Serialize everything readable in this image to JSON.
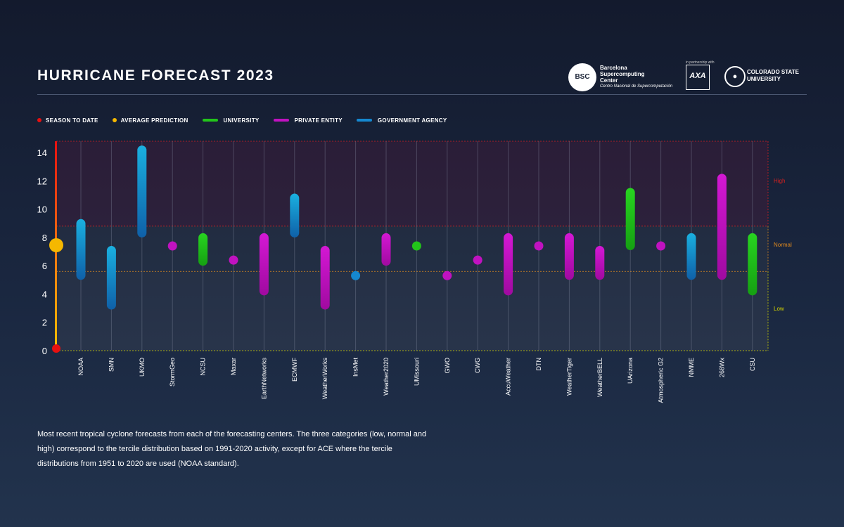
{
  "header": {
    "title": "HURRICANE FORECAST 2023"
  },
  "logos": {
    "bsc_mark": "BSC",
    "bsc_name_lines": [
      "Barcelona",
      "Supercomputing",
      "Center"
    ],
    "bsc_subtitle": "Centro Nacional de Supercomputación",
    "axa_tag": "in partnership with",
    "axa_mark": "AXA",
    "csu_name_lines": [
      "COLORADO STATE",
      "UNIVERSITY"
    ]
  },
  "legend": {
    "items": [
      {
        "label": "SEASON TO DATE",
        "kind": "dot",
        "color": "#e81010"
      },
      {
        "label": "AVERAGE PREDICTION",
        "kind": "dot",
        "color": "#f5b800"
      },
      {
        "label": "UNIVERSITY",
        "kind": "line",
        "color": "#22c41a"
      },
      {
        "label": "PRIVATE ENTITY",
        "kind": "line",
        "color": "#c012c0"
      },
      {
        "label": "GOVERNMENT AGENCY",
        "kind": "line",
        "color": "#1588d0"
      }
    ]
  },
  "chart_data": {
    "type": "range",
    "ylim": [
      0,
      14.8
    ],
    "yticks": [
      0,
      2,
      4,
      6,
      8,
      10,
      12,
      14
    ],
    "grid": "vertical",
    "terciles": {
      "low_upper": 5.6,
      "normal_upper": 8.8,
      "labels": {
        "high": "High",
        "normal": "Normal",
        "low": "Low"
      },
      "colors": {
        "high": "#d42020",
        "normal": "#e08a1e",
        "low": "#d4d400"
      }
    },
    "season_to_date": 0.1,
    "average_prediction": 7.4,
    "colors": {
      "university": "#22c41a",
      "private": "#c012c0",
      "government": "#1588d0",
      "season_to_date": "#e81010",
      "average_prediction": "#f5b800"
    },
    "categories": [
      "NOAA",
      "SMN",
      "UKMO",
      "StormGeo",
      "NCSU",
      "Maxar",
      "EarthNetworks",
      "ECMWF",
      "WeatherWorks",
      "InsMet",
      "Weather2020",
      "UMissouri",
      "GWO",
      "CWG",
      "AccuWeather",
      "DTN",
      "WeatherTiger",
      "WeatherBELL",
      "UArizona",
      "Atmospheric G2",
      "NMME",
      "268Wx",
      "CSU"
    ],
    "series": [
      {
        "name": "NOAA",
        "type": "government",
        "low": 5.3,
        "high": 9.0
      },
      {
        "name": "SMN",
        "type": "government",
        "low": 3.2,
        "high": 7.1
      },
      {
        "name": "UKMO",
        "type": "government",
        "low": 8.3,
        "high": 14.2
      },
      {
        "name": "StormGeo",
        "type": "private",
        "low": 7.4,
        "high": 7.4
      },
      {
        "name": "NCSU",
        "type": "university",
        "low": 6.3,
        "high": 8.0
      },
      {
        "name": "Maxar",
        "type": "private",
        "low": 6.4,
        "high": 6.4
      },
      {
        "name": "EarthNetworks",
        "type": "private",
        "low": 4.2,
        "high": 8.0
      },
      {
        "name": "ECMWF",
        "type": "government",
        "low": 8.3,
        "high": 10.8
      },
      {
        "name": "WeatherWorks",
        "type": "private",
        "low": 3.2,
        "high": 7.1
      },
      {
        "name": "InsMet",
        "type": "government",
        "low": 5.3,
        "high": 5.3
      },
      {
        "name": "Weather2020",
        "type": "private",
        "low": 6.3,
        "high": 8.0
      },
      {
        "name": "UMissouri",
        "type": "university",
        "low": 7.4,
        "high": 7.4
      },
      {
        "name": "GWO",
        "type": "private",
        "low": 5.3,
        "high": 5.3
      },
      {
        "name": "CWG",
        "type": "private",
        "low": 6.4,
        "high": 6.4
      },
      {
        "name": "AccuWeather",
        "type": "private",
        "low": 4.2,
        "high": 8.0
      },
      {
        "name": "DTN",
        "type": "private",
        "low": 7.4,
        "high": 7.4
      },
      {
        "name": "WeatherTiger",
        "type": "private",
        "low": 5.3,
        "high": 8.0
      },
      {
        "name": "WeatherBELL",
        "type": "private",
        "low": 5.3,
        "high": 7.1
      },
      {
        "name": "UArizona",
        "type": "university",
        "low": 7.4,
        "high": 11.2
      },
      {
        "name": "Atmospheric G2",
        "type": "private",
        "low": 7.4,
        "high": 7.4
      },
      {
        "name": "NMME",
        "type": "government",
        "low": 5.3,
        "high": 8.0
      },
      {
        "name": "268Wx",
        "type": "private",
        "low": 5.3,
        "high": 12.2
      },
      {
        "name": "CSU",
        "type": "university",
        "low": 4.2,
        "high": 8.0
      }
    ]
  },
  "caption": "Most recent tropical cyclone forecasts from each of the forecasting centers. The three categories (low, normal and high) correspond to the tercile distribution based on 1991-2020 activity, except for ACE where the tercile distributions from 1951 to 2020 are used (NOAA standard)."
}
